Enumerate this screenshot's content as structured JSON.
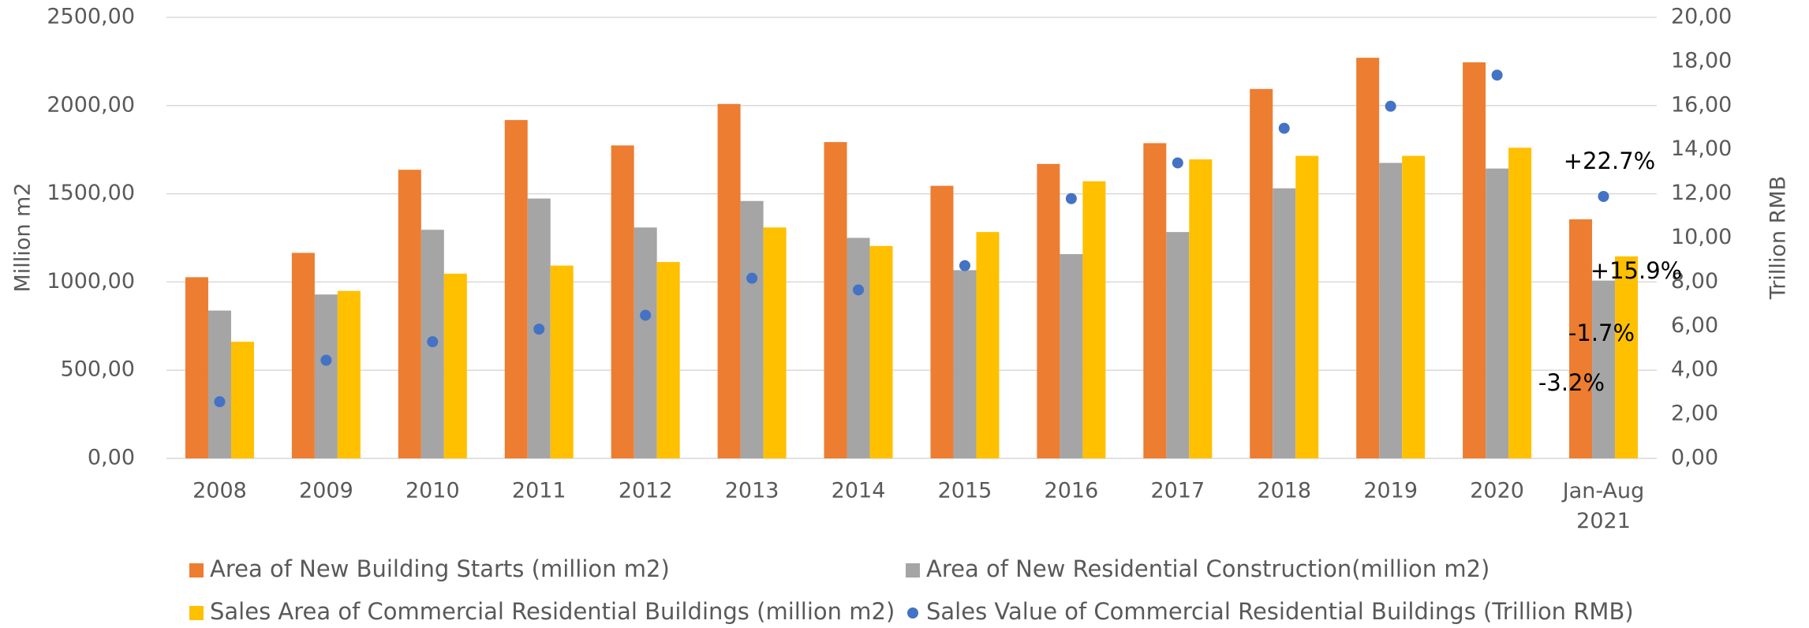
{
  "chart_data": {
    "type": "bar",
    "categories": [
      "2008",
      "2009",
      "2010",
      "2011",
      "2012",
      "2013",
      "2014",
      "2015",
      "2016",
      "2017",
      "2018",
      "2019",
      "2020",
      "Jan-Aug 2021"
    ],
    "series": [
      {
        "name": "Area of New Building Starts (million m2)",
        "color": "#ed7d31",
        "type": "bar",
        "values": [
          1027,
          1165,
          1636,
          1918,
          1774,
          2009,
          1793,
          1545,
          1669,
          1787,
          2094,
          2271,
          2245,
          1355
        ]
      },
      {
        "name": "Area of New Residential Construction(million m2)",
        "color": "#a5a5a5",
        "type": "bar",
        "values": [
          838,
          929,
          1296,
          1473,
          1309,
          1459,
          1250,
          1067,
          1158,
          1283,
          1531,
          1675,
          1643,
          1008
        ]
      },
      {
        "name": "Sales Area of Commercial Residential Buildings (million m2)",
        "color": "#ffc000",
        "type": "bar",
        "values": [
          661,
          949,
          1047,
          1093,
          1113,
          1309,
          1204,
          1283,
          1571,
          1695,
          1715,
          1715,
          1761,
          1145
        ]
      },
      {
        "name": "Sales Value of Commercial Residential Buildings (Trillion RMB)",
        "color": "#4472c4",
        "type": "scatter",
        "axis": "y2",
        "values": [
          2.57,
          4.45,
          5.29,
          5.86,
          6.49,
          8.17,
          7.64,
          8.74,
          11.78,
          13.4,
          14.97,
          15.97,
          17.38,
          11.88
        ]
      }
    ],
    "ylabel": "Million m2",
    "y2label": "Trillion RMB",
    "ylim": [
      0,
      2500
    ],
    "yticks": [
      {
        "value": 0,
        "label": "0,00"
      },
      {
        "value": 500,
        "label": "500,00"
      },
      {
        "value": 1000,
        "label": "1000,00"
      },
      {
        "value": 1500,
        "label": "1500,00"
      },
      {
        "value": 2000,
        "label": "2000,00"
      },
      {
        "value": 2500,
        "label": "2500,00"
      }
    ],
    "y2lim": [
      0,
      20
    ],
    "y2ticks": [
      {
        "value": 0,
        "label": "0,00"
      },
      {
        "value": 2,
        "label": "2,00"
      },
      {
        "value": 4,
        "label": "4,00"
      },
      {
        "value": 6,
        "label": "6,00"
      },
      {
        "value": 8,
        "label": "8,00"
      },
      {
        "value": 10,
        "label": "10,00"
      },
      {
        "value": 12,
        "label": "12,00"
      },
      {
        "value": 14,
        "label": "14,00"
      },
      {
        "value": 16,
        "label": "16,00"
      },
      {
        "value": 18,
        "label": "18,00"
      },
      {
        "value": 20,
        "label": "20,00"
      }
    ],
    "grid": true,
    "legend": "bottom",
    "annotations": [
      "+22.7%",
      "+15.9%",
      "-1.7%",
      "-3.2%"
    ]
  }
}
